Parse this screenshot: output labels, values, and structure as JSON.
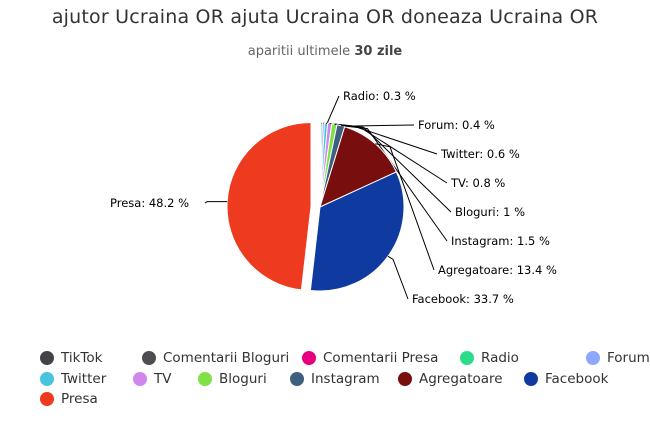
{
  "chart_data": {
    "type": "pie",
    "title": "ajutor Ucraina OR ajuta Ucraina OR doneaza Ucraina OR",
    "subtitle_prefix": "aparitii ultimele",
    "subtitle_bold": "30 zile",
    "slices": [
      {
        "name": "TikTok",
        "value": 0.05,
        "color": "#434348",
        "label": ""
      },
      {
        "name": "Comentarii Bloguri",
        "value": 0.05,
        "color": "#4d4d52",
        "label": ""
      },
      {
        "name": "Comentarii Presa",
        "value": 0.05,
        "color": "#e6007e",
        "label": ""
      },
      {
        "name": "Radio",
        "value": 0.3,
        "color": "#2bdc8a",
        "label": "Radio: 0.3 %"
      },
      {
        "name": "Forum",
        "value": 0.4,
        "color": "#8fa7ff",
        "label": "Forum: 0.4 %"
      },
      {
        "name": "Twitter",
        "value": 0.6,
        "color": "#48c4e0",
        "label": "Twitter: 0.6 %"
      },
      {
        "name": "TV",
        "value": 0.8,
        "color": "#cf87ee",
        "label": "TV: 0.8 %"
      },
      {
        "name": "Bloguri",
        "value": 1.0,
        "color": "#7fe146",
        "label": "Bloguri: 1 %"
      },
      {
        "name": "Instagram",
        "value": 1.5,
        "color": "#3d5f80",
        "label": "Instagram: 1.5 %"
      },
      {
        "name": "Agregatoare",
        "value": 13.4,
        "color": "#780e0e",
        "label": "Agregatoare: 13.4 %"
      },
      {
        "name": "Facebook",
        "value": 33.7,
        "color": "#0f3ba0",
        "label": "Facebook: 33.7 %"
      },
      {
        "name": "Presa",
        "value": 48.2,
        "color": "#ee3a1f",
        "label": "Presa: 48.2 %"
      }
    ]
  }
}
